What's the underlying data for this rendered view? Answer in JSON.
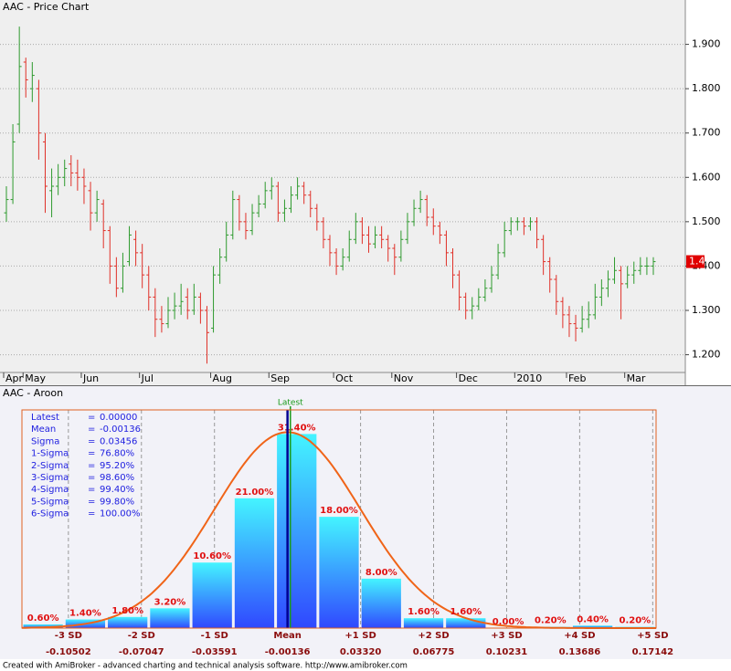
{
  "chart_data": [
    {
      "type": "ohlc",
      "title": "AAC - Price Chart",
      "up_color": "#2e9a2e",
      "down_color": "#e03028",
      "ylim": [
        1.16,
        2.0
      ],
      "yticks": [
        {
          "value": 1.2,
          "label": "1.200"
        },
        {
          "value": 1.3,
          "label": "1.300"
        },
        {
          "value": 1.4,
          "label": "1.400"
        },
        {
          "value": 1.5,
          "label": "1.500"
        },
        {
          "value": 1.6,
          "label": "1.600"
        },
        {
          "value": 1.7,
          "label": "1.700"
        },
        {
          "value": 1.8,
          "label": "1.800"
        },
        {
          "value": 1.9,
          "label": "1.900"
        }
      ],
      "grid": true,
      "last_price_label": "1.4",
      "last_price_color": "#e00000",
      "categories": [
        "Apr",
        null,
        null,
        "May",
        null,
        null,
        null,
        null,
        null,
        null,
        null,
        null,
        "Jun",
        null,
        null,
        null,
        null,
        null,
        null,
        null,
        null,
        "Jul",
        null,
        null,
        null,
        null,
        null,
        null,
        null,
        null,
        null,
        null,
        "Aug",
        null,
        null,
        null,
        null,
        null,
        null,
        null,
        null,
        "Sep",
        null,
        null,
        null,
        null,
        null,
        null,
        null,
        null,
        null,
        "Oct",
        null,
        null,
        null,
        null,
        null,
        null,
        null,
        null,
        "Nov",
        null,
        null,
        null,
        null,
        null,
        null,
        null,
        null,
        null,
        "Dec",
        null,
        null,
        null,
        null,
        null,
        null,
        null,
        null,
        "2010",
        null,
        null,
        null,
        null,
        null,
        null,
        null,
        "Feb",
        null,
        null,
        null,
        null,
        null,
        null,
        null,
        null,
        "Mar",
        null,
        null,
        null,
        null
      ],
      "ohlc": [
        [
          1.52,
          1.58,
          1.5,
          1.55
        ],
        [
          1.55,
          1.72,
          1.54,
          1.68
        ],
        [
          1.72,
          1.94,
          1.7,
          1.85
        ],
        [
          1.86,
          1.87,
          1.78,
          1.82
        ],
        [
          1.8,
          1.86,
          1.77,
          1.83
        ],
        [
          1.8,
          1.82,
          1.64,
          1.7
        ],
        [
          1.68,
          1.7,
          1.52,
          1.58
        ],
        [
          1.57,
          1.62,
          1.51,
          1.58
        ],
        [
          1.58,
          1.63,
          1.56,
          1.6
        ],
        [
          1.6,
          1.64,
          1.58,
          1.62
        ],
        [
          1.63,
          1.65,
          1.58,
          1.61
        ],
        [
          1.61,
          1.64,
          1.57,
          1.6
        ],
        [
          1.6,
          1.62,
          1.54,
          1.58
        ],
        [
          1.57,
          1.59,
          1.48,
          1.52
        ],
        [
          1.52,
          1.57,
          1.5,
          1.55
        ],
        [
          1.54,
          1.55,
          1.44,
          1.48
        ],
        [
          1.48,
          1.49,
          1.36,
          1.4
        ],
        [
          1.4,
          1.42,
          1.33,
          1.35
        ],
        [
          1.35,
          1.43,
          1.34,
          1.4
        ],
        [
          1.41,
          1.49,
          1.4,
          1.47
        ],
        [
          1.46,
          1.48,
          1.4,
          1.43
        ],
        [
          1.43,
          1.45,
          1.35,
          1.38
        ],
        [
          1.38,
          1.4,
          1.3,
          1.33
        ],
        [
          1.33,
          1.35,
          1.24,
          1.28
        ],
        [
          1.28,
          1.31,
          1.25,
          1.27
        ],
        [
          1.27,
          1.33,
          1.26,
          1.3
        ],
        [
          1.3,
          1.34,
          1.28,
          1.31
        ],
        [
          1.31,
          1.36,
          1.29,
          1.32
        ],
        [
          1.33,
          1.35,
          1.28,
          1.3
        ],
        [
          1.3,
          1.36,
          1.29,
          1.33
        ],
        [
          1.33,
          1.34,
          1.27,
          1.3
        ],
        [
          1.3,
          1.31,
          1.18,
          1.25
        ],
        [
          1.26,
          1.4,
          1.25,
          1.38
        ],
        [
          1.38,
          1.44,
          1.36,
          1.42
        ],
        [
          1.42,
          1.5,
          1.41,
          1.47
        ],
        [
          1.47,
          1.57,
          1.46,
          1.55
        ],
        [
          1.55,
          1.56,
          1.48,
          1.5
        ],
        [
          1.5,
          1.52,
          1.46,
          1.48
        ],
        [
          1.48,
          1.54,
          1.47,
          1.52
        ],
        [
          1.52,
          1.56,
          1.51,
          1.54
        ],
        [
          1.54,
          1.59,
          1.53,
          1.57
        ],
        [
          1.57,
          1.6,
          1.55,
          1.58
        ],
        [
          1.58,
          1.59,
          1.5,
          1.52
        ],
        [
          1.52,
          1.55,
          1.5,
          1.53
        ],
        [
          1.53,
          1.58,
          1.52,
          1.56
        ],
        [
          1.56,
          1.6,
          1.55,
          1.58
        ],
        [
          1.58,
          1.59,
          1.54,
          1.56
        ],
        [
          1.56,
          1.57,
          1.51,
          1.53
        ],
        [
          1.53,
          1.54,
          1.48,
          1.5
        ],
        [
          1.5,
          1.51,
          1.44,
          1.46
        ],
        [
          1.46,
          1.47,
          1.4,
          1.43
        ],
        [
          1.43,
          1.44,
          1.38,
          1.4
        ],
        [
          1.4,
          1.44,
          1.39,
          1.42
        ],
        [
          1.42,
          1.48,
          1.41,
          1.46
        ],
        [
          1.46,
          1.52,
          1.45,
          1.5
        ],
        [
          1.5,
          1.51,
          1.45,
          1.47
        ],
        [
          1.47,
          1.49,
          1.43,
          1.45
        ],
        [
          1.45,
          1.49,
          1.44,
          1.47
        ],
        [
          1.47,
          1.49,
          1.44,
          1.46
        ],
        [
          1.46,
          1.47,
          1.41,
          1.44
        ],
        [
          1.44,
          1.45,
          1.38,
          1.42
        ],
        [
          1.42,
          1.48,
          1.41,
          1.46
        ],
        [
          1.46,
          1.52,
          1.45,
          1.5
        ],
        [
          1.5,
          1.55,
          1.49,
          1.53
        ],
        [
          1.53,
          1.57,
          1.52,
          1.55
        ],
        [
          1.55,
          1.56,
          1.49,
          1.51
        ],
        [
          1.51,
          1.53,
          1.47,
          1.49
        ],
        [
          1.49,
          1.5,
          1.45,
          1.47
        ],
        [
          1.47,
          1.48,
          1.4,
          1.43
        ],
        [
          1.43,
          1.44,
          1.35,
          1.38
        ],
        [
          1.38,
          1.39,
          1.3,
          1.33
        ],
        [
          1.33,
          1.34,
          1.28,
          1.3
        ],
        [
          1.3,
          1.33,
          1.28,
          1.31
        ],
        [
          1.31,
          1.35,
          1.3,
          1.33
        ],
        [
          1.33,
          1.37,
          1.32,
          1.35
        ],
        [
          1.35,
          1.4,
          1.34,
          1.38
        ],
        [
          1.38,
          1.45,
          1.37,
          1.43
        ],
        [
          1.43,
          1.5,
          1.42,
          1.48
        ],
        [
          1.48,
          1.51,
          1.47,
          1.5
        ],
        [
          1.5,
          1.51,
          1.48,
          1.5
        ],
        [
          1.5,
          1.51,
          1.47,
          1.49
        ],
        [
          1.49,
          1.51,
          1.48,
          1.5
        ],
        [
          1.5,
          1.51,
          1.44,
          1.46
        ],
        [
          1.46,
          1.47,
          1.38,
          1.41
        ],
        [
          1.41,
          1.42,
          1.34,
          1.37
        ],
        [
          1.37,
          1.38,
          1.29,
          1.32
        ],
        [
          1.32,
          1.33,
          1.26,
          1.29
        ],
        [
          1.29,
          1.31,
          1.24,
          1.27
        ],
        [
          1.27,
          1.29,
          1.23,
          1.26
        ],
        [
          1.26,
          1.31,
          1.25,
          1.28
        ],
        [
          1.28,
          1.32,
          1.26,
          1.29
        ],
        [
          1.29,
          1.36,
          1.28,
          1.33
        ],
        [
          1.33,
          1.37,
          1.31,
          1.35
        ],
        [
          1.35,
          1.39,
          1.33,
          1.37
        ],
        [
          1.37,
          1.42,
          1.36,
          1.39
        ],
        [
          1.39,
          1.4,
          1.28,
          1.36
        ],
        [
          1.36,
          1.4,
          1.35,
          1.38
        ],
        [
          1.38,
          1.41,
          1.36,
          1.39
        ],
        [
          1.39,
          1.42,
          1.38,
          1.4
        ],
        [
          1.4,
          1.42,
          1.38,
          1.4
        ],
        [
          1.4,
          1.42,
          1.38,
          1.41
        ]
      ]
    },
    {
      "type": "histogram",
      "title": "AAC - Aroon",
      "bins": [
        -0.127,
        -0.107,
        -0.087,
        -0.067,
        -0.047,
        -0.027,
        -0.007,
        0.013,
        0.033,
        0.053,
        0.073,
        0.093,
        0.113,
        0.133,
        0.153,
        0.173
      ],
      "values": [
        0.6,
        1.4,
        1.8,
        3.2,
        10.6,
        21,
        31.4,
        18,
        8,
        1.6,
        1.6,
        0,
        0.2,
        0.4,
        0.2
      ],
      "value_labels": [
        "0.60%",
        "1.40%",
        "1.80%",
        "3.20%",
        "10.60%",
        "21.00%",
        "31.40%",
        "18.00%",
        "8.00%",
        "1.60%",
        "1.60%",
        "0.00%",
        "0.20%",
        "0.40%",
        "0.20%"
      ],
      "xlim": [
        -0.127,
        0.173
      ],
      "ylim": [
        0,
        35.3
      ],
      "bar_color_top": "#44f4ff",
      "bar_color_bottom": "#3048ff",
      "xticks": [
        {
          "value": -0.10502,
          "label": "-3 SD",
          "value_label": "-0.10502"
        },
        {
          "value": -0.07047,
          "label": "-2 SD",
          "value_label": "-0.07047"
        },
        {
          "value": -0.03591,
          "label": "-1 SD",
          "value_label": "-0.03591"
        },
        {
          "value": -0.00136,
          "label": "Mean",
          "value_label": "-0.00136"
        },
        {
          "value": 0.0332,
          "label": "+1 SD",
          "value_label": "0.03320"
        },
        {
          "value": 0.06775,
          "label": "+2 SD",
          "value_label": "0.06775"
        },
        {
          "value": 0.10231,
          "label": "+3 SD",
          "value_label": "0.10231"
        },
        {
          "value": 0.13686,
          "label": "+4 SD",
          "value_label": "0.13686"
        },
        {
          "value": 0.17142,
          "label": "+5 SD",
          "value_label": "0.17142"
        }
      ],
      "latest_label": "Latest",
      "latest_color": "#1a9a1a",
      "mean_color": "#000090",
      "curve": {
        "color": "#f06418",
        "peak": 31.7
      },
      "stats": [
        {
          "name": "Latest",
          "value": 0,
          "label": "0.00000"
        },
        {
          "name": "Mean",
          "value": -0.00136,
          "label": "-0.00136"
        },
        {
          "name": "Sigma",
          "value": 0.03456,
          "label": "0.03456"
        },
        {
          "name": "1-Sigma",
          "value": 76.8,
          "label": "76.80%"
        },
        {
          "name": "2-Sigma",
          "value": 95.2,
          "label": "95.20%"
        },
        {
          "name": "3-Sigma",
          "value": 98.6,
          "label": "98.60%"
        },
        {
          "name": "4-Sigma",
          "value": 99.4,
          "label": "99.40%"
        },
        {
          "name": "5-Sigma",
          "value": 99.8,
          "label": "99.80%"
        },
        {
          "name": "6-Sigma",
          "value": 100,
          "label": "100.00%"
        }
      ]
    }
  ],
  "footer": "Created with AmiBroker - advanced charting and technical analysis software. http://www.amibroker.com"
}
